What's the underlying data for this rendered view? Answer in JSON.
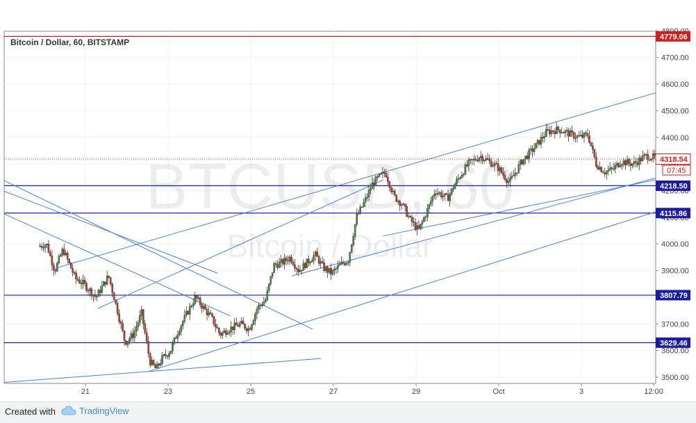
{
  "chart_data": {
    "type": "candlestick",
    "title": "Bitcoin / Dollar, 60, BITSTAMP",
    "watermark": {
      "symbol": "BTCUSD, 60",
      "name": "Bitcoin / Dollar"
    },
    "ylim": [
      3480,
      4800
    ],
    "x_ticks": [
      "21",
      "23",
      "25",
      "27",
      "29",
      "Oct",
      "3",
      "12:00"
    ],
    "y_ticks": [
      "3500.00",
      "3600.00",
      "3700.00",
      "3800.00",
      "3900.00",
      "4000.00",
      "4100.00",
      "4200.00",
      "4300.00",
      "4400.00",
      "4500.00",
      "4600.00",
      "4700.00",
      "4800.00"
    ],
    "last_price": {
      "value": 4318.54,
      "label": "4318.54",
      "countdown": "07:45"
    },
    "horizontal_levels": [
      {
        "value": 4779.06,
        "label": "4779.06",
        "color": "#cc1f1f"
      },
      {
        "value": 4218.5,
        "label": "4218.50",
        "color": "#1c1c9e"
      },
      {
        "value": 4115.86,
        "label": "4115.86",
        "color": "#1c1c9e"
      },
      {
        "value": 3807.79,
        "label": "3807.79",
        "color": "#1c1c9e"
      },
      {
        "value": 3629.46,
        "label": "3629.46",
        "color": "#1c1c9e"
      }
    ],
    "price_path": [
      [
        19.9,
        3990
      ],
      [
        20.1,
        4000
      ],
      [
        20.3,
        3900
      ],
      [
        20.5,
        3980
      ],
      [
        20.8,
        3870
      ],
      [
        21.0,
        3850
      ],
      [
        21.3,
        3800
      ],
      [
        21.6,
        3880
      ],
      [
        21.8,
        3760
      ],
      [
        22.0,
        3630
      ],
      [
        22.2,
        3660
      ],
      [
        22.4,
        3740
      ],
      [
        22.6,
        3560
      ],
      [
        22.75,
        3530
      ],
      [
        22.9,
        3570
      ],
      [
        23.1,
        3600
      ],
      [
        23.3,
        3680
      ],
      [
        23.5,
        3740
      ],
      [
        23.7,
        3800
      ],
      [
        23.9,
        3760
      ],
      [
        24.1,
        3720
      ],
      [
        24.3,
        3660
      ],
      [
        24.5,
        3680
      ],
      [
        24.8,
        3700
      ],
      [
        25.0,
        3680
      ],
      [
        25.2,
        3760
      ],
      [
        25.4,
        3790
      ],
      [
        25.6,
        3920
      ],
      [
        25.8,
        3930
      ],
      [
        26.0,
        3950
      ],
      [
        26.2,
        3900
      ],
      [
        26.4,
        3930
      ],
      [
        26.6,
        3960
      ],
      [
        26.8,
        3910
      ],
      [
        27.0,
        3890
      ],
      [
        27.2,
        3920
      ],
      [
        27.4,
        3940
      ],
      [
        27.6,
        4100
      ],
      [
        27.8,
        4160
      ],
      [
        28.0,
        4230
      ],
      [
        28.3,
        4270
      ],
      [
        28.5,
        4180
      ],
      [
        28.7,
        4150
      ],
      [
        28.9,
        4090
      ],
      [
        29.1,
        4050
      ],
      [
        29.3,
        4120
      ],
      [
        29.5,
        4200
      ],
      [
        29.8,
        4170
      ],
      [
        30.0,
        4230
      ],
      [
        30.3,
        4300
      ],
      [
        30.6,
        4330
      ],
      [
        31.0,
        4290
      ],
      [
        31.3,
        4230
      ],
      [
        31.6,
        4310
      ],
      [
        31.9,
        4360
      ],
      [
        32.2,
        4420
      ],
      [
        32.5,
        4430
      ],
      [
        32.8,
        4410
      ],
      [
        33.0,
        4400
      ],
      [
        33.2,
        4410
      ],
      [
        33.4,
        4300
      ],
      [
        33.6,
        4270
      ],
      [
        33.8,
        4280
      ],
      [
        34.0,
        4310
      ],
      [
        34.3,
        4300
      ],
      [
        34.6,
        4330
      ],
      [
        34.8,
        4325
      ]
    ],
    "trend_lines": [
      [
        [
          20.3,
          3910
        ],
        [
          35.3,
          4590
        ]
      ],
      [
        [
          21.3,
          3758
        ],
        [
          28.2,
          4240
        ]
      ],
      [
        [
          22.5,
          3520
        ],
        [
          35.4,
          4150
        ]
      ],
      [
        [
          19.0,
          3480
        ],
        [
          26.7,
          3570
        ]
      ],
      [
        [
          19.0,
          4240
        ],
        [
          26.5,
          3680
        ]
      ],
      [
        [
          19.0,
          4200
        ],
        [
          24.2,
          3890
        ]
      ],
      [
        [
          19.0,
          4115
        ],
        [
          24.5,
          3730
        ]
      ],
      [
        [
          26.0,
          3880
        ],
        [
          35.1,
          4260
        ]
      ],
      [
        [
          28.2,
          4030
        ],
        [
          35.1,
          4250
        ]
      ]
    ],
    "grid": true,
    "colors": {
      "up": "#4a8a3f",
      "down": "#c0392b",
      "trend": "#4a7fd0",
      "level": "#1c1c9e",
      "top_level": "#cc1f1f",
      "last_price": "#cc1f1f"
    }
  },
  "footer": {
    "created_with": "Created with",
    "brand": "TradingView"
  }
}
